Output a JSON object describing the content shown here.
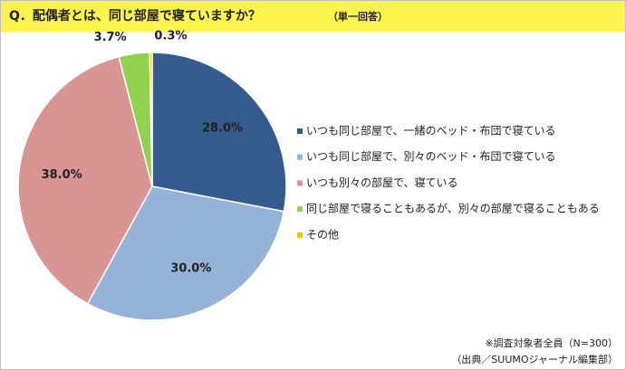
{
  "chart_data": {
    "type": "pie",
    "title": "Q．配偶者とは、同じ部屋で寝ていますか？",
    "subtitle": "（単一回答）",
    "categories": [
      "いつも同じ部屋で、一緒のベッド・布団で寝ている",
      "いつも同じ部屋で、別々のベッド・布団で寝ている",
      "いつも別々の部屋で、寝ている",
      "同じ部屋で寝ることもあるが、別々の部屋で寝ることもある",
      "その他"
    ],
    "values": [
      28.0,
      30.0,
      38.0,
      3.7,
      0.3
    ],
    "value_labels": [
      "28.0%",
      "30.0%",
      "38.0%",
      "3.7%",
      "0.3%"
    ],
    "colors": [
      "#335b8e",
      "#95b3d7",
      "#d99594",
      "#92d050",
      "#ffc000"
    ],
    "legend": "right",
    "notes": [
      "※調査対象者全員（N=300）",
      "（出典／SUUMOジャーナル編集部）"
    ]
  }
}
